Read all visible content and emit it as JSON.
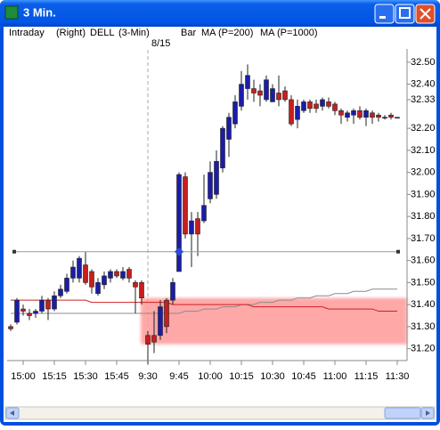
{
  "window": {
    "title": "3 Min."
  },
  "header": {
    "mode": "Intraday",
    "side": "(Right)",
    "symbol": "DELL",
    "interval": "(3-Min)",
    "style": "Bar"
  },
  "chart_data": {
    "type": "candlestick",
    "annotation": "8/15",
    "categories": [
      null,
      null,
      "15:00",
      null,
      null,
      null,
      null,
      "15:15",
      null,
      null,
      null,
      null,
      "15:30",
      null,
      null,
      null,
      null,
      "15:45",
      null,
      null,
      null,
      null,
      "9:30",
      null,
      null,
      null,
      null,
      "9:45",
      null,
      null,
      null,
      null,
      "10:00",
      null,
      null,
      null,
      null,
      "10:15",
      null,
      null,
      null,
      null,
      "10:30",
      null,
      null,
      null,
      null,
      "10:45",
      null,
      null,
      null,
      null,
      "11:00",
      null,
      null,
      null,
      null,
      "11:15",
      null,
      null,
      null,
      null,
      "11:30"
    ],
    "open": [
      31.3,
      31.32,
      31.38,
      31.36,
      31.36,
      31.37,
      31.42,
      31.38,
      31.44,
      31.46,
      31.52,
      31.52,
      31.58,
      31.55,
      31.45,
      31.49,
      31.52,
      31.55,
      31.52,
      31.56,
      31.5,
      31.5,
      31.26,
      31.26,
      31.26,
      31.42,
      31.42,
      31.55,
      31.98,
      31.72,
      31.79,
      31.78,
      31.88,
      31.9,
      32.02,
      32.15,
      32.22,
      32.3,
      32.38,
      32.38,
      32.37,
      32.33,
      32.32,
      32.36,
      32.37,
      32.33,
      32.24,
      32.28,
      32.32,
      32.31,
      32.3,
      32.32,
      32.31,
      32.28,
      32.25,
      32.26,
      32.28,
      32.25,
      32.27,
      32.26,
      32.25,
      32.26,
      32.25
    ],
    "high": [
      31.31,
      31.43,
      31.4,
      31.38,
      31.38,
      31.44,
      31.43,
      31.46,
      31.49,
      31.54,
      31.6,
      31.62,
      31.64,
      31.56,
      31.52,
      31.55,
      31.56,
      31.56,
      31.57,
      31.57,
      31.51,
      31.51,
      31.28,
      31.37,
      31.42,
      31.43,
      31.52,
      32.0,
      32.0,
      31.82,
      31.82,
      31.99,
      32.05,
      32.1,
      32.21,
      32.27,
      32.35,
      32.46,
      32.49,
      32.42,
      32.4,
      32.44,
      32.4,
      32.44,
      32.39,
      32.35,
      32.33,
      32.33,
      32.33,
      32.33,
      32.34,
      32.34,
      32.32,
      32.29,
      32.28,
      32.29,
      32.3,
      32.29,
      32.28,
      32.27,
      32.26,
      32.27,
      32.25
    ],
    "low": [
      31.28,
      31.31,
      31.35,
      31.33,
      31.34,
      31.36,
      31.33,
      31.37,
      31.43,
      31.45,
      31.5,
      31.5,
      31.49,
      31.45,
      31.44,
      31.47,
      31.5,
      31.52,
      31.51,
      31.5,
      31.36,
      31.4,
      31.13,
      31.18,
      31.24,
      31.27,
      31.4,
      31.55,
      31.7,
      31.57,
      31.62,
      31.77,
      31.86,
      31.88,
      32.0,
      32.07,
      32.2,
      32.28,
      32.33,
      32.32,
      32.3,
      32.32,
      32.32,
      32.3,
      32.32,
      32.21,
      32.2,
      32.27,
      32.27,
      32.27,
      32.28,
      32.29,
      32.26,
      32.22,
      32.23,
      32.22,
      32.24,
      32.21,
      32.22,
      32.23,
      32.24,
      32.24,
      32.25
    ],
    "close": [
      31.29,
      31.42,
      31.37,
      31.35,
      31.37,
      31.42,
      31.38,
      31.44,
      31.47,
      31.52,
      31.57,
      31.61,
      31.5,
      31.48,
      31.5,
      31.53,
      31.55,
      31.53,
      31.55,
      31.52,
      31.48,
      31.43,
      31.22,
      31.23,
      31.39,
      31.3,
      31.5,
      31.99,
      31.72,
      31.78,
      31.72,
      31.85,
      32.0,
      32.05,
      32.2,
      32.25,
      32.32,
      32.4,
      32.44,
      32.36,
      32.35,
      32.42,
      32.38,
      32.33,
      32.33,
      32.22,
      32.3,
      32.32,
      32.29,
      32.29,
      32.33,
      32.3,
      32.28,
      32.26,
      32.27,
      32.28,
      32.25,
      32.28,
      32.25,
      32.25,
      32.25,
      32.25,
      32.25
    ],
    "up_color": "#1c1ca8",
    "down_color": "#c81e1e",
    "series": [
      {
        "name": "MA (P=200)",
        "color": "#8c8c8c",
        "values": [
          31.36,
          31.36,
          31.36,
          31.36,
          31.36,
          31.36,
          31.36,
          31.36,
          31.36,
          31.36,
          31.36,
          31.36,
          31.36,
          31.36,
          31.36,
          31.36,
          31.36,
          31.36,
          31.36,
          31.36,
          31.36,
          31.36,
          31.36,
          31.36,
          31.36,
          31.36,
          31.36,
          31.36,
          31.37,
          31.37,
          31.37,
          31.38,
          31.38,
          31.38,
          31.39,
          31.39,
          31.39,
          31.4,
          31.4,
          31.4,
          31.41,
          31.41,
          31.41,
          31.42,
          31.42,
          31.42,
          31.43,
          31.43,
          31.43,
          31.44,
          31.44,
          31.44,
          31.45,
          31.45,
          31.45,
          31.46,
          31.46,
          31.46,
          31.47,
          31.47,
          31.47,
          31.47,
          31.47
        ]
      },
      {
        "name": "MA (P=1000)",
        "color": "#d02020",
        "values": [
          31.42,
          31.42,
          31.42,
          31.42,
          31.42,
          31.42,
          31.42,
          31.42,
          31.42,
          31.42,
          31.42,
          31.42,
          31.42,
          31.41,
          31.41,
          31.41,
          31.41,
          31.41,
          31.41,
          31.41,
          31.41,
          31.41,
          31.41,
          31.41,
          31.41,
          31.41,
          31.4,
          31.4,
          31.4,
          31.4,
          31.4,
          31.4,
          31.4,
          31.4,
          31.4,
          31.4,
          31.4,
          31.4,
          31.4,
          31.39,
          31.39,
          31.39,
          31.39,
          31.39,
          31.39,
          31.39,
          31.39,
          31.39,
          31.39,
          31.39,
          31.39,
          31.38,
          31.38,
          31.38,
          31.38,
          31.38,
          31.38,
          31.38,
          31.38,
          31.37,
          31.37,
          31.37,
          31.37
        ]
      }
    ],
    "ylim": [
      31.15,
      32.56
    ],
    "yticks": [
      {
        "value": 31.2,
        "label": "31.20"
      },
      {
        "value": 31.3,
        "label": "31.30"
      },
      {
        "value": 31.4,
        "label": "31.40"
      },
      {
        "value": 31.5,
        "label": "31.50"
      },
      {
        "value": 31.6,
        "label": "31.60"
      },
      {
        "value": 31.7,
        "label": "31.70"
      },
      {
        "value": 31.8,
        "label": "31.80"
      },
      {
        "value": 31.9,
        "label": "31.90"
      },
      {
        "value": 32.0,
        "label": "32.00"
      },
      {
        "value": 32.1,
        "label": "32.10"
      },
      {
        "value": 32.2,
        "label": "32.20"
      },
      {
        "value": 32.33,
        "label": "32.33"
      },
      {
        "value": 32.4,
        "label": "32.40"
      },
      {
        "value": 32.5,
        "label": "32.50"
      }
    ],
    "crosshair": 31.64,
    "highlight": {
      "low": 31.22,
      "high": 31.43,
      "color": "#ff9a9a"
    }
  }
}
